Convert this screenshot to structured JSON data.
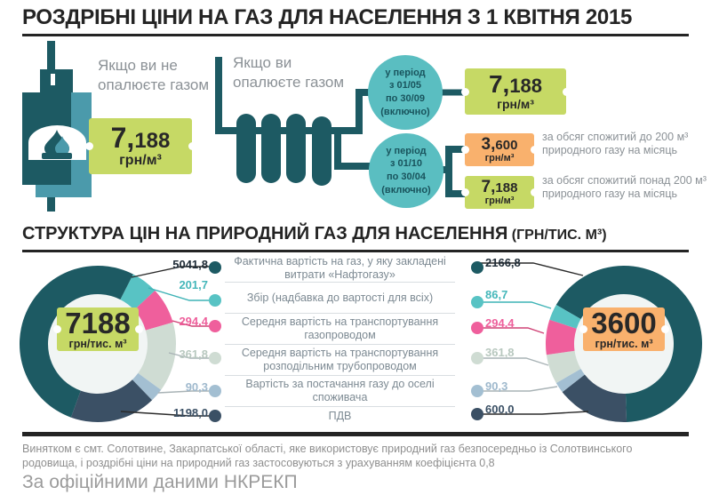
{
  "title": "РОЗДРІБНІ ЦІНИ НА ГАЗ ДЛЯ НАСЕЛЕННЯ З 1 КВІТНЯ 2015",
  "top": {
    "no_heat_label": "Якщо ви не опалюєте газом",
    "no_heat_price": {
      "big": "7,",
      "frac": "188",
      "unit": "грн/м³"
    },
    "heat_label": "Якщо ви опалюєте газом",
    "summer_period": {
      "l1": "у період",
      "l2": "з 01/05",
      "l3": "по 30/09",
      "l4": "(включно)"
    },
    "summer_price": {
      "big": "7,",
      "frac": "188",
      "unit": "грн/м³"
    },
    "winter_period": {
      "l1": "у період",
      "l2": "з 01/10",
      "l3": "по 30/04",
      "l4": "(включно)"
    },
    "winter_tier1_price": {
      "big": "3,",
      "frac": "600",
      "unit": "грн/м³"
    },
    "winter_tier1_desc": "за обсяг спожитий до 200 м³ природного газу на місяць",
    "winter_tier2_price": {
      "big": "7,",
      "frac": "188",
      "unit": "грн/м³"
    },
    "winter_tier2_desc": "за обсяг спожитий понад 200 м³ природного газу на місяць"
  },
  "structure": {
    "title": "СТРУКТУРА ЦІН НА ПРИРОДНИЙ ГАЗ ДЛЯ НАСЕЛЕННЯ",
    "unit": "(ГРН/ТИС. М³)",
    "rows": [
      "Фактична вартість на газ, у яку закладені витрати «Нафтогазу»",
      "Збір (надбавка до вартості для всіх)",
      "Середня вартість на транспортування газопроводом",
      "Середня вартість на транспортування розподільним трубопроводом",
      "Вартість за постачання газу до оселі споживача",
      "ПДВ"
    ]
  },
  "chart_data": [
    {
      "type": "pie",
      "title": "Структура ціни на природний газ 7188 грн/тис. м³",
      "total": 7188.0,
      "center": {
        "value": "7188",
        "unit": "грн/тис. м³"
      },
      "labels": [
        "Фактична вартість на газ, у яку закладені витрати «Нафтогазу»",
        "Збір (надбавка до вартості для всіх)",
        "Середня вартість на транспортування газопроводом",
        "Середня вартість на транспортування розподільним трубопроводом",
        "Вартість за постачання газу до оселі споживача",
        "ПДВ"
      ],
      "values": [
        5041.8,
        201.7,
        294.4,
        361.8,
        90.3,
        1198.0
      ],
      "value_labels": [
        "5041,8",
        "201,7",
        "294,4",
        "361,8",
        "90,3",
        "1198,0"
      ],
      "colors": [
        "#1d5a63",
        "#58c3c4",
        "#ef5f9c",
        "#cfdcd3",
        "#a3bfd2",
        "#3b5065"
      ],
      "value_colors": [
        "#1e2b36",
        "#45b7ba",
        "#ee5f9b",
        "#b8c8bf",
        "#9fb9cd",
        "#3b5065"
      ],
      "line_colors": [
        "#2b2b2b",
        "#3fb3b6",
        "#cf4376",
        "#a9b3b6",
        "#a9b3b6",
        "#2b2b2b"
      ]
    },
    {
      "type": "pie",
      "title": "Структура ціни на природний газ 3600 грн/тис. м³",
      "total": 3600.0,
      "center": {
        "value": "3600",
        "unit": "грн/тис. м³"
      },
      "labels": [
        "Фактична вартість на газ, у яку закладені витрати «Нафтогазу»",
        "Збір (надбавка до вартості для всіх)",
        "Середня вартість на транспортування газопроводом",
        "Середня вартість на транспортування розподільним трубопроводом",
        "Вартість за постачання газу до оселі споживача",
        "ПДВ"
      ],
      "values": [
        2166.8,
        86.7,
        294.4,
        361.8,
        90.3,
        600.0
      ],
      "value_labels": [
        "2166,8",
        "86,7",
        "294,4",
        "361,8",
        "90,3",
        "600,0"
      ],
      "colors": [
        "#1d5a63",
        "#58c3c4",
        "#ef5f9c",
        "#cfdcd3",
        "#a3bfd2",
        "#3b5065"
      ],
      "value_colors": [
        "#1e2b36",
        "#45b7ba",
        "#ee5f9b",
        "#b8c8bf",
        "#9fb9cd",
        "#3b5065"
      ],
      "line_colors": [
        "#2b2b2b",
        "#3fb3b6",
        "#cf4376",
        "#a9b3b6",
        "#a9b3b6",
        "#2b2b2b"
      ]
    }
  ],
  "footnote": "Винятком є смт. Солотвине, Закарпатської області, яке використовує природний газ безпосередньо із Солотвинського родовища, і роздрібні ціни на природний газ застосовуються з урахуванням коефіцієнта 0,8",
  "source": "За офіційними даними НКРЕКП"
}
